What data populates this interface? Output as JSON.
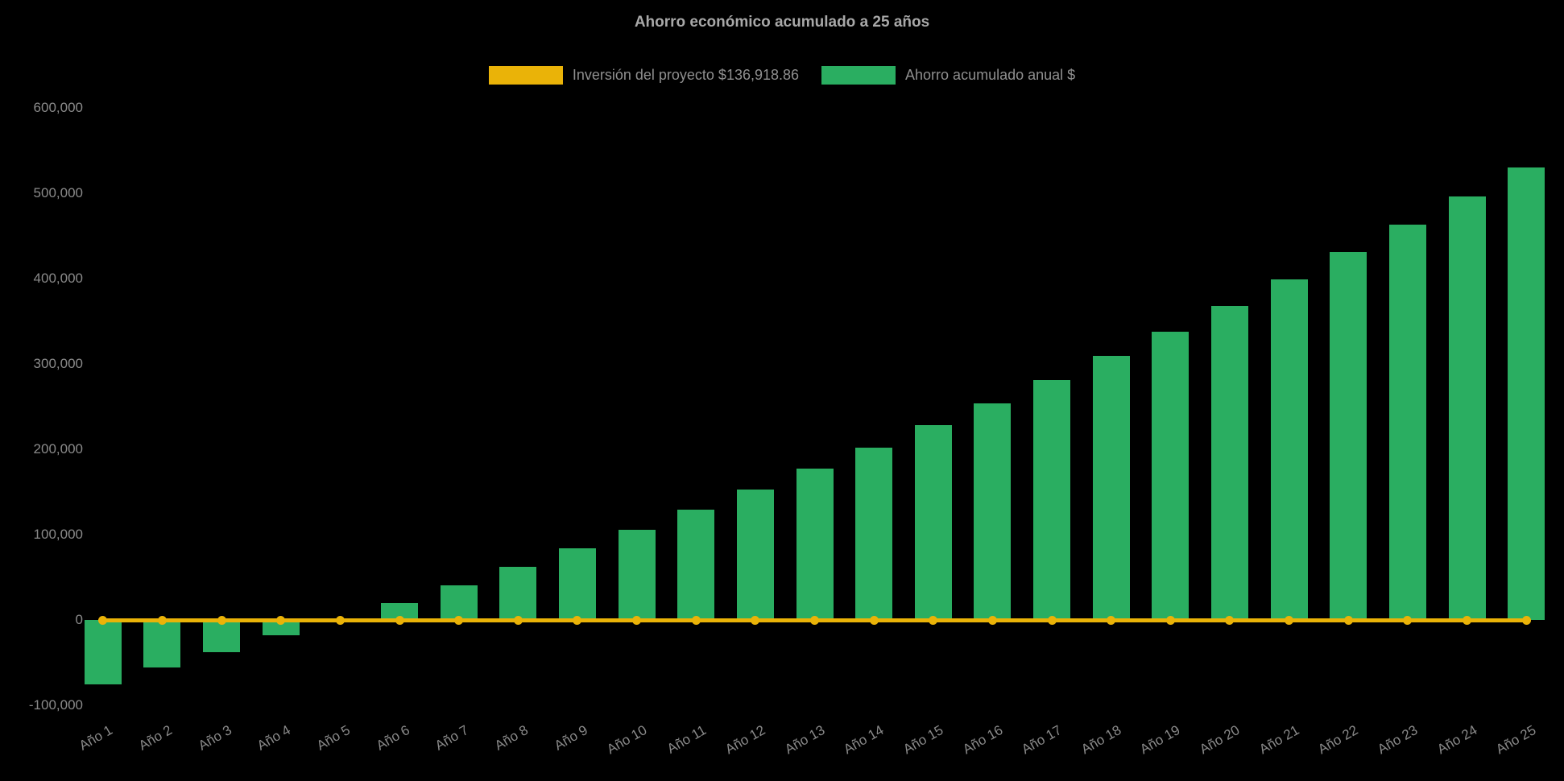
{
  "legend": [
    {
      "label": "Inversión del proyecto $136,918.86",
      "color": "#eab308"
    },
    {
      "label": "Ahorro acumulado anual $",
      "color": "#2aae61"
    }
  ],
  "colors": {
    "background": "#000000",
    "bar_green": "#2aae61",
    "line_yellow": "#eab308",
    "text_gray": "#8a8a8a"
  },
  "chart_data": {
    "type": "bar",
    "title": "Ahorro económico acumulado a 25 años",
    "xlabel": "",
    "ylabel": "",
    "ylim": [
      -100000,
      600000
    ],
    "ytick_step": 100000,
    "grid": false,
    "legend_position": "top",
    "categories": [
      "Año 1",
      "Año 2",
      "Año 3",
      "Año 4",
      "Año 5",
      "Año 6",
      "Año 7",
      "Año 8",
      "Año 9",
      "Año 10",
      "Año 11",
      "Año 12",
      "Año 13",
      "Año 14",
      "Año 15",
      "Año 16",
      "Año 17",
      "Año 18",
      "Año 19",
      "Año 20",
      "Año 21",
      "Año 22",
      "Año 23",
      "Año 24",
      "Año 25"
    ],
    "yticks": [
      {
        "value": 600000,
        "label": "600,000"
      },
      {
        "value": 500000,
        "label": "500,000"
      },
      {
        "value": 400000,
        "label": "400,000"
      },
      {
        "value": 300000,
        "label": "300,000"
      },
      {
        "value": 200000,
        "label": "200,000"
      },
      {
        "value": 100000,
        "label": "100,000"
      },
      {
        "value": 0,
        "label": "0"
      },
      {
        "value": -100000,
        "label": "-100,000"
      }
    ],
    "series": [
      {
        "name": "Ahorro acumulado anual $",
        "type": "bar",
        "color": "#2aae61",
        "values": [
          -75000,
          -56000,
          -38000,
          -18000,
          1000,
          20000,
          41000,
          62000,
          84000,
          106000,
          129000,
          153000,
          177000,
          202000,
          228000,
          254000,
          281000,
          309000,
          338000,
          368000,
          399000,
          431000,
          463000,
          496000,
          530000
        ]
      },
      {
        "name": "Inversión del proyecto $136,918.86",
        "type": "line",
        "color": "#eab308",
        "values": [
          0,
          0,
          0,
          0,
          0,
          0,
          0,
          0,
          0,
          0,
          0,
          0,
          0,
          0,
          0,
          0,
          0,
          0,
          0,
          0,
          0,
          0,
          0,
          0,
          0
        ]
      }
    ]
  }
}
